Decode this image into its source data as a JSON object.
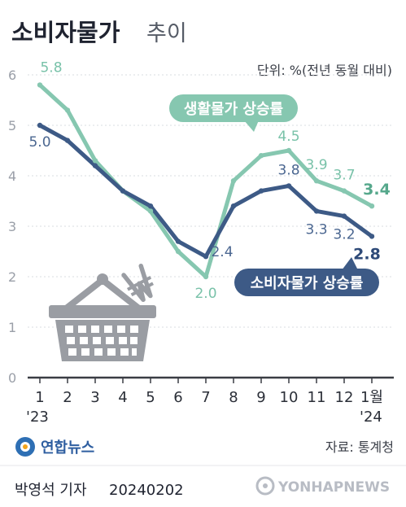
{
  "title": {
    "main": "소비자물가",
    "sub": "추이"
  },
  "unit_note": "단위: %(전년 동월 대비)",
  "chart_data": {
    "type": "line",
    "title": "소비자물가 추이",
    "categories": [
      "1",
      "2",
      "3",
      "4",
      "5",
      "6",
      "7",
      "8",
      "9",
      "10",
      "11",
      "12",
      "1월"
    ],
    "year_labels": {
      "start": "'23",
      "end": "'24"
    },
    "ylim": [
      0,
      6
    ],
    "yticks": [
      "0",
      "1",
      "2",
      "3",
      "4",
      "5",
      "6"
    ],
    "grid": true,
    "series": [
      {
        "name": "생활물가 상승률",
        "color": "#86c7b0",
        "values": [
          5.8,
          5.3,
          4.3,
          3.7,
          3.3,
          2.5,
          2.0,
          3.9,
          4.4,
          4.5,
          3.9,
          3.7,
          3.4
        ],
        "labels": [
          {
            "index": 0,
            "text": "5.8"
          },
          {
            "index": 6,
            "text": "2.0"
          },
          {
            "index": 9,
            "text": "4.5"
          },
          {
            "index": 10,
            "text": "3.9"
          },
          {
            "index": 11,
            "text": "3.7"
          },
          {
            "index": 12,
            "text": "3.4"
          }
        ]
      },
      {
        "name": "소비자물가 상승률",
        "color": "#3d5a86",
        "values": [
          5.0,
          4.7,
          4.2,
          3.7,
          3.4,
          2.7,
          2.4,
          3.4,
          3.7,
          3.8,
          3.3,
          3.2,
          2.8
        ],
        "labels": [
          {
            "index": 0,
            "text": "5.0"
          },
          {
            "index": 6,
            "text": "2.4"
          },
          {
            "index": 9,
            "text": "3.8"
          },
          {
            "index": 10,
            "text": "3.3"
          },
          {
            "index": 11,
            "text": "3.2"
          },
          {
            "index": 12,
            "text": "2.8"
          }
        ]
      }
    ],
    "source": "자료: 통계청"
  },
  "footer": {
    "agency": "연합뉴스",
    "byline": "박영석 기자",
    "date": "20240202",
    "watermark": "YONHAPNEWS"
  },
  "colors": {
    "green": "#86c7b0",
    "blue": "#3d5a86",
    "basket": "#9a9da3"
  },
  "icons": [
    "shopping-basket-icon",
    "won-sign-icon",
    "yonhap-logo-icon"
  ]
}
